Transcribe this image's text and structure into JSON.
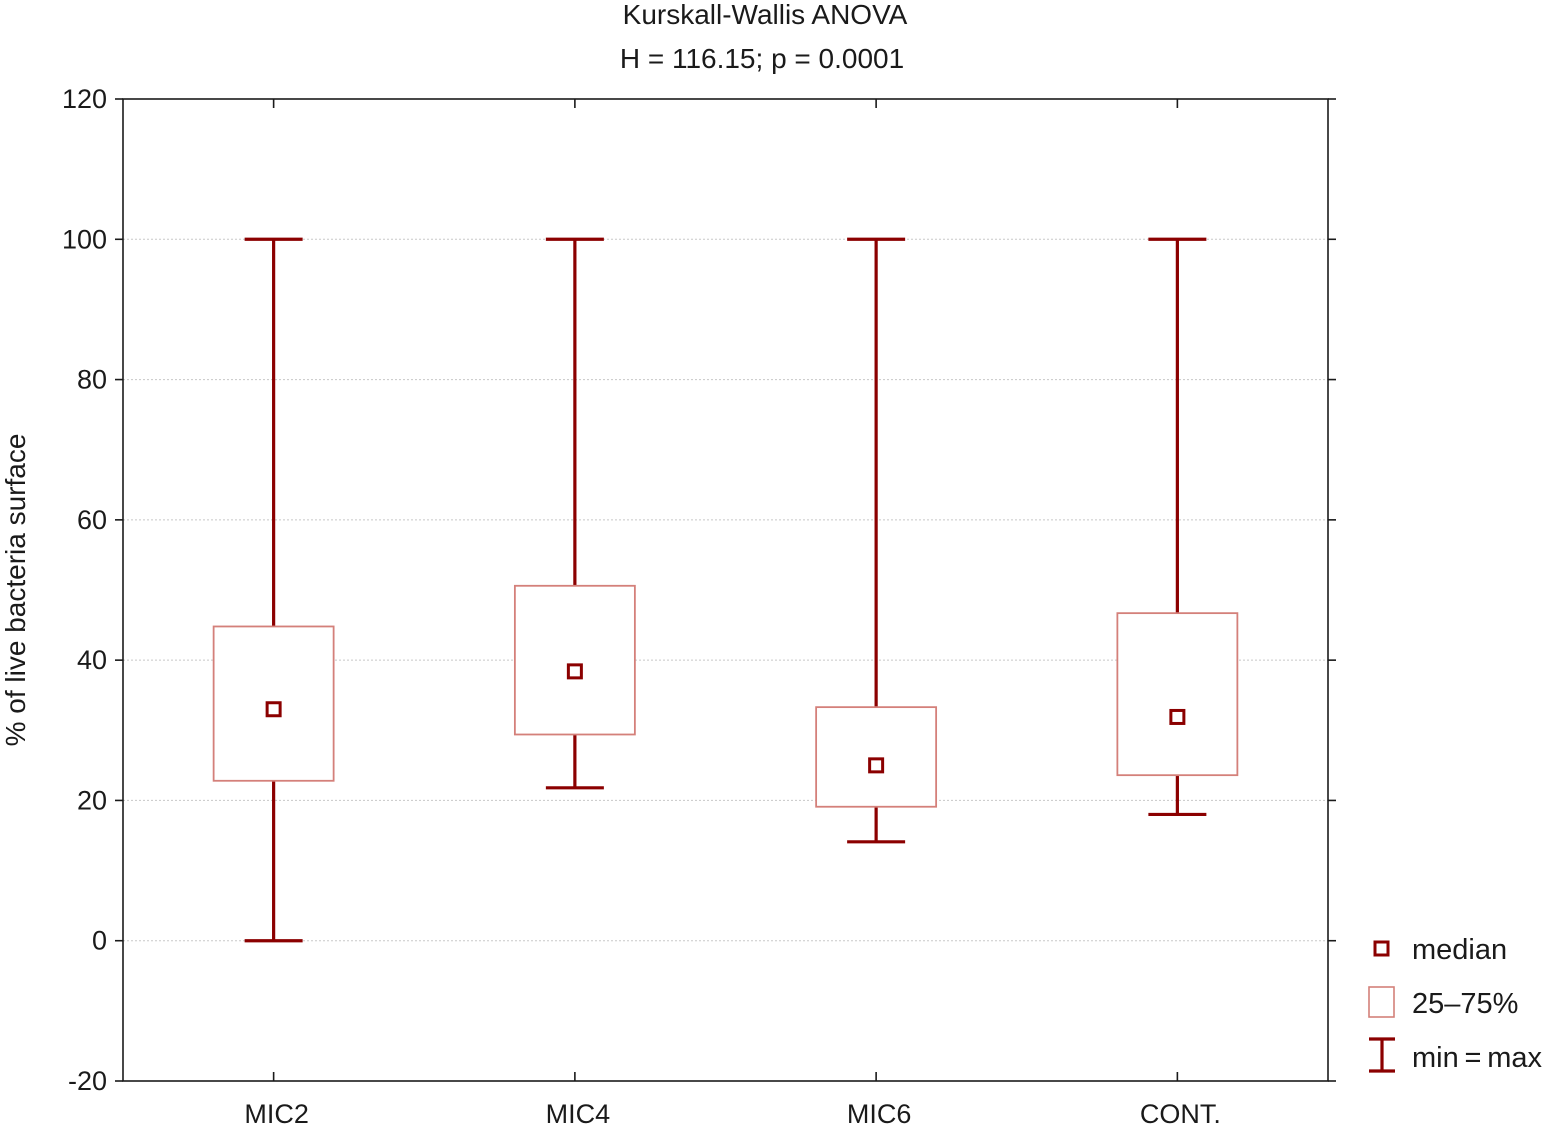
{
  "chart_data": {
    "type": "box",
    "title": "Kurskall-Wallis ANOVA",
    "subtitle": "H = 116.15;  p = 0.0001",
    "xlabel": "",
    "ylabel": "% of live bacteria surface",
    "ylim": [
      -20,
      120
    ],
    "yticks": [
      -20,
      0,
      20,
      40,
      60,
      80,
      100,
      120
    ],
    "grid": true,
    "categories": [
      "MIC2",
      "MIC4",
      "MIC6",
      "CONT."
    ],
    "series": [
      {
        "name": "median",
        "values": [
          33,
          38.4,
          25,
          31.9
        ]
      },
      {
        "name": "25–75%",
        "q1": [
          22.8,
          29.4,
          19.1,
          23.6
        ],
        "q3": [
          44.8,
          50.6,
          33.3,
          46.7
        ]
      },
      {
        "name": "min = max",
        "min": [
          0,
          21.8,
          14.1,
          18
        ],
        "max": [
          100,
          100,
          100,
          100
        ]
      }
    ],
    "legend": {
      "position": "right-bottom",
      "entries": [
        "median",
        "25–75%",
        "min = max"
      ]
    },
    "colors": {
      "whisker": "#8b0000",
      "box": "#d4807a",
      "median": "#8b0000",
      "grid": "#c8c8c8",
      "axis": "#1a1a1a"
    }
  }
}
